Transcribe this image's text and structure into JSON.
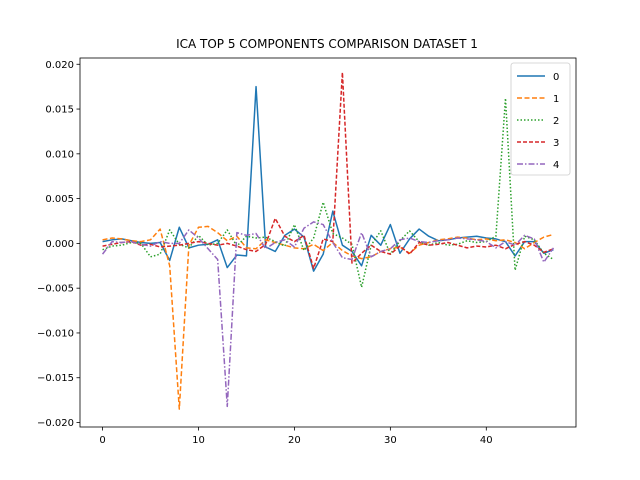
{
  "chart_data": {
    "type": "line",
    "title": "ICA TOP 5 COMPONENTS COMPARISON DATASET 1",
    "xlabel": "",
    "ylabel": "",
    "xlim": [
      -2.35,
      49.35
    ],
    "ylim": [
      -0.0205,
      0.0207
    ],
    "xticks": [
      0,
      10,
      20,
      30,
      40
    ],
    "xtick_labels": [
      "0",
      "10",
      "20",
      "30",
      "40"
    ],
    "yticks": [
      -0.02,
      -0.015,
      -0.01,
      -0.005,
      0.0,
      0.005,
      0.01,
      0.015,
      0.02
    ],
    "ytick_labels": [
      "−0.020",
      "−0.015",
      "−0.010",
      "−0.005",
      "0.000",
      "0.005",
      "0.010",
      "0.015",
      "0.020"
    ],
    "grid": false,
    "legend_position": "top-right",
    "series": [
      {
        "name": "0",
        "color": "#1f77b4",
        "dash": "solid",
        "values": [
          0.0002,
          0.0004,
          0.0005,
          0.0003,
          0.0001,
          0.0,
          0.0001,
          -0.0019,
          0.0018,
          -0.0005,
          -0.0002,
          -0.0001,
          0.0004,
          -0.0027,
          -0.0013,
          -0.0014,
          0.0175,
          -0.0004,
          -0.0009,
          0.0009,
          0.0016,
          0.0007,
          -0.0031,
          -0.0012,
          0.0036,
          -0.0002,
          -0.0009,
          -0.0025,
          0.0009,
          -0.0002,
          0.0021,
          -0.0011,
          0.0005,
          0.0016,
          0.0008,
          0.0003,
          0.0004,
          0.0006,
          0.0007,
          0.0008,
          0.0006,
          0.0005,
          0.0002,
          -0.0014,
          0.0002,
          0.0002,
          -0.0011,
          -0.0007
        ]
      },
      {
        "name": "1",
        "color": "#ff7f0e",
        "dash": "5,2.5",
        "values": [
          0.0004,
          0.0006,
          0.0005,
          0.0003,
          0.0002,
          0.0004,
          0.0016,
          -0.0025,
          -0.0185,
          -0.0002,
          0.0018,
          0.0019,
          0.0012,
          0.0003,
          0.0008,
          -0.0005,
          -0.0006,
          0.0004,
          0.0001,
          -0.0002,
          -0.0005,
          -0.0006,
          -0.0001,
          -0.0008,
          0.0001,
          -0.0008,
          -0.0014,
          -0.0017,
          -0.0015,
          -0.0009,
          -0.0006,
          -0.0004,
          -0.0011,
          -0.0002,
          0.0001,
          0.0004,
          0.0005,
          0.0007,
          0.0006,
          0.0004,
          0.0005,
          0.0003,
          0.0004,
          0.0001,
          -0.0006,
          0.0001,
          0.0007,
          0.001
        ]
      },
      {
        "name": "2",
        "color": "#2ca02c",
        "dash": "1.5,2",
        "values": [
          -0.0007,
          -0.0003,
          -0.0002,
          0.0001,
          0.0,
          -0.0015,
          -0.0012,
          0.0015,
          -0.0001,
          -0.0005,
          0.0009,
          -0.0002,
          0.0,
          0.0015,
          -0.0003,
          0.0008,
          0.0006,
          0.0007,
          0.0002,
          -0.0003,
          0.0021,
          -0.0008,
          0.0006,
          0.0046,
          0.0011,
          0.0006,
          -0.0001,
          -0.0049,
          -0.0002,
          0.0014,
          -0.0012,
          0.0003,
          0.0014,
          0.0002,
          -0.0002,
          0.0001,
          -0.0002,
          -0.0001,
          0.0003,
          0.0001,
          0.0002,
          0.0008,
          0.0162,
          -0.003,
          0.0008,
          0.0004,
          -0.0011,
          -0.0018
        ]
      },
      {
        "name": "3",
        "color": "#d62728",
        "dash": "4,2",
        "values": [
          -0.0003,
          -0.0001,
          0.0001,
          0.0002,
          -0.0002,
          -0.0001,
          -0.0004,
          -0.0003,
          -0.0002,
          0.0,
          0.0002,
          0.0,
          -0.0002,
          0.0,
          -0.0003,
          -0.0007,
          -0.0009,
          -0.0001,
          0.0028,
          0.0008,
          0.0002,
          0.0009,
          -0.0028,
          0.0005,
          0.0002,
          0.0191,
          -0.0022,
          -0.0011,
          -0.0002,
          -0.0009,
          -0.0012,
          -0.0003,
          -0.0012,
          0.0001,
          -0.0002,
          -0.0001,
          0.0001,
          -0.0002,
          -0.0005,
          -0.0003,
          -0.0004,
          -0.0002,
          -0.0006,
          -0.0001,
          0.0002,
          -0.0002,
          -0.001,
          -0.0006
        ]
      },
      {
        "name": "4",
        "color": "#9467bd",
        "dash": "6,2,1.5,2",
        "values": [
          -0.0012,
          0.0002,
          0.0001,
          0.0002,
          -0.0001,
          -0.0003,
          0.0002,
          0.0,
          0.0,
          0.0015,
          0.0006,
          -0.0006,
          -0.0018,
          -0.0182,
          0.0012,
          0.0009,
          0.0011,
          -0.0006,
          0.0001,
          0.0004,
          -0.0004,
          0.0017,
          0.0024,
          0.0021,
          0.0001,
          -0.0016,
          -0.0018,
          0.0012,
          -0.0015,
          -0.0009,
          -0.0006,
          0.0004,
          0.0006,
          0.0002,
          0.0001,
          0.0003,
          0.0004,
          0.0006,
          0.0005,
          0.0004,
          0.0002,
          -0.0005,
          0.0002,
          -0.0002,
          0.0009,
          0.0005,
          -0.0021,
          -0.0005
        ]
      }
    ]
  }
}
